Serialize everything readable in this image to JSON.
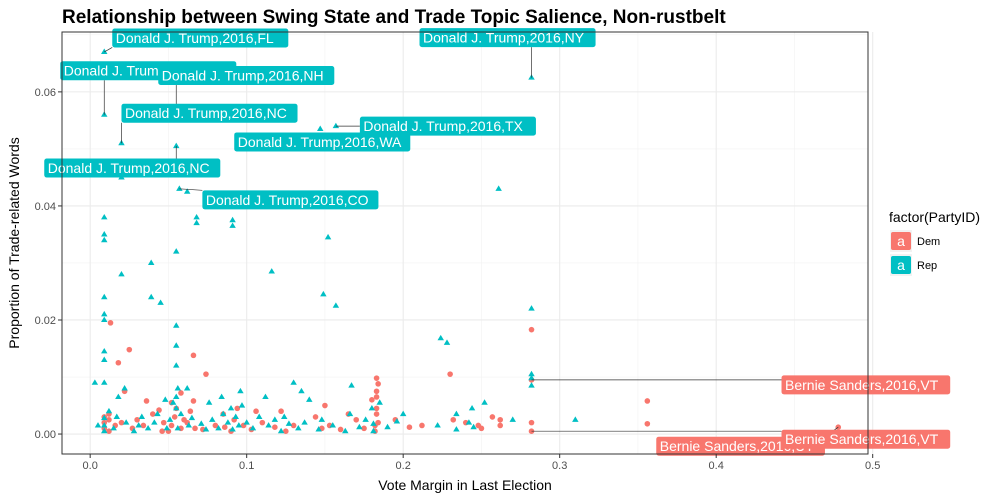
{
  "chart_data": {
    "type": "scatter",
    "title": "Relationship between Swing State and Trade Topic Salience, Non-rustbelt",
    "xlabel": "Vote Margin in Last Election",
    "ylabel": "Proportion of Trade-related Words",
    "xlim": [
      -0.018,
      0.497
    ],
    "ylim": [
      -0.0035,
      0.0705
    ],
    "x_ticks": [
      {
        "value": 0.0,
        "label": "0.0"
      },
      {
        "value": 0.1,
        "label": "0.1"
      },
      {
        "value": 0.2,
        "label": "0.2"
      },
      {
        "value": 0.3,
        "label": "0.3"
      },
      {
        "value": 0.4,
        "label": "0.4"
      },
      {
        "value": 0.5,
        "label": "0.5"
      }
    ],
    "y_ticks": [
      {
        "value": 0.0,
        "label": "0.00"
      },
      {
        "value": 0.02,
        "label": "0.02"
      },
      {
        "value": 0.04,
        "label": "0.04"
      },
      {
        "value": 0.06,
        "label": "0.06"
      }
    ],
    "grid": true,
    "legend": {
      "title": "factor(PartyID)",
      "position": "right",
      "key_glyph": "a",
      "items": [
        {
          "label": "Dem",
          "color": "#F8766D"
        },
        {
          "label": "Rep",
          "color": "#00BFC4"
        }
      ]
    },
    "series": [
      {
        "name": "Dem",
        "color": "#F8766D",
        "marker": "circle",
        "points": [
          [
            0.013,
            0.0195
          ],
          [
            0.018,
            0.0125
          ],
          [
            0.025,
            0.0148
          ],
          [
            0.022,
            0.0075
          ],
          [
            0.036,
            0.0058
          ],
          [
            0.04,
            0.0035
          ],
          [
            0.044,
            0.0042
          ],
          [
            0.058,
            0.0072
          ],
          [
            0.052,
            0.0055
          ],
          [
            0.066,
            0.0138
          ],
          [
            0.066,
            0.0058
          ],
          [
            0.074,
            0.0105
          ],
          [
            0.085,
            0.0035
          ],
          [
            0.094,
            0.0045
          ],
          [
            0.106,
            0.004
          ],
          [
            0.122,
            0.004
          ],
          [
            0.144,
            0.003
          ],
          [
            0.15,
            0.005
          ],
          [
            0.165,
            0.0035
          ],
          [
            0.183,
            0.0098
          ],
          [
            0.18,
            0.006
          ],
          [
            0.195,
            0.0025
          ],
          [
            0.204,
            0.0012
          ],
          [
            0.23,
            0.0105
          ],
          [
            0.24,
            0.002
          ],
          [
            0.248,
            0.0015
          ],
          [
            0.257,
            0.003
          ],
          [
            0.262,
            0.0015
          ],
          [
            0.282,
            0.0183
          ],
          [
            0.282,
            0.0095
          ],
          [
            0.356,
            0.0058
          ],
          [
            0.356,
            0.0018
          ],
          [
            0.478,
            0.0012
          ],
          [
            0.009,
            0.001
          ],
          [
            0.009,
            0.002
          ],
          [
            0.009,
            0.003
          ],
          [
            0.012,
            0.0005
          ],
          [
            0.012,
            0.0025
          ],
          [
            0.012,
            0.0035
          ],
          [
            0.016,
            0.0015
          ],
          [
            0.02,
            0.002
          ],
          [
            0.027,
            0.001
          ],
          [
            0.03,
            0.0025
          ],
          [
            0.034,
            0.0015
          ],
          [
            0.046,
            0.0005
          ],
          [
            0.047,
            0.002
          ],
          [
            0.05,
            0.0005
          ],
          [
            0.052,
            0.0015
          ],
          [
            0.054,
            0.003
          ],
          [
            0.055,
            0.0045
          ],
          [
            0.058,
            0.001
          ],
          [
            0.06,
            0.0025
          ],
          [
            0.062,
            0.002
          ],
          [
            0.064,
            0.004
          ],
          [
            0.067,
            0.001
          ],
          [
            0.072,
            0.0008
          ],
          [
            0.08,
            0.0015
          ],
          [
            0.086,
            0.0012
          ],
          [
            0.09,
            0.0005
          ],
          [
            0.092,
            0.0025
          ],
          [
            0.098,
            0.0015
          ],
          [
            0.103,
            0.0008
          ],
          [
            0.11,
            0.002
          ],
          [
            0.118,
            0.0012
          ],
          [
            0.125,
            0.0005
          ],
          [
            0.13,
            0.0015
          ],
          [
            0.148,
            0.001
          ],
          [
            0.153,
            0.0015
          ],
          [
            0.16,
            0.0008
          ],
          [
            0.17,
            0.0025
          ],
          [
            0.175,
            0.001
          ],
          [
            0.182,
            0.0005
          ],
          [
            0.182,
            0.0015
          ],
          [
            0.183,
            0.0035
          ],
          [
            0.183,
            0.0075
          ],
          [
            0.183,
            0.0045
          ],
          [
            0.183,
            0.0065
          ],
          [
            0.184,
            0.002
          ],
          [
            0.184,
            0.0088
          ],
          [
            0.212,
            0.0015
          ],
          [
            0.232,
            0.0025
          ],
          [
            0.25,
            0.001
          ],
          [
            0.262,
            0.0025
          ],
          [
            0.282,
            0.0005
          ],
          [
            0.282,
            0.002
          ]
        ]
      },
      {
        "name": "Rep",
        "color": "#00BFC4",
        "marker": "triangle",
        "points": [
          [
            0.009,
            0.067
          ],
          [
            0.009,
            0.056
          ],
          [
            0.02,
            0.051
          ],
          [
            0.02,
            0.046
          ],
          [
            0.02,
            0.045
          ],
          [
            0.009,
            0.038
          ],
          [
            0.009,
            0.035
          ],
          [
            0.009,
            0.034
          ],
          [
            0.02,
            0.028
          ],
          [
            0.039,
            0.03
          ],
          [
            0.039,
            0.024
          ],
          [
            0.045,
            0.023
          ],
          [
            0.009,
            0.024
          ],
          [
            0.009,
            0.021
          ],
          [
            0.009,
            0.02
          ],
          [
            0.009,
            0.013
          ],
          [
            0.009,
            0.0145
          ],
          [
            0.009,
            0.009
          ],
          [
            0.055,
            0.0505
          ],
          [
            0.055,
            0.032
          ],
          [
            0.055,
            0.019
          ],
          [
            0.055,
            0.0045
          ],
          [
            0.057,
            0.043
          ],
          [
            0.062,
            0.0425
          ],
          [
            0.068,
            0.038
          ],
          [
            0.068,
            0.037
          ],
          [
            0.091,
            0.0375
          ],
          [
            0.091,
            0.0365
          ],
          [
            0.116,
            0.0285
          ],
          [
            0.147,
            0.0535
          ],
          [
            0.152,
            0.0345
          ],
          [
            0.157,
            0.054
          ],
          [
            0.157,
            0.0225
          ],
          [
            0.149,
            0.0245
          ],
          [
            0.135,
            0.0075
          ],
          [
            0.13,
            0.009
          ],
          [
            0.224,
            0.0168
          ],
          [
            0.228,
            0.016
          ],
          [
            0.261,
            0.043
          ],
          [
            0.282,
            0.0625
          ],
          [
            0.282,
            0.022
          ],
          [
            0.282,
            0.0098
          ],
          [
            0.282,
            0.0085
          ],
          [
            0.282,
            0.0105
          ],
          [
            0.252,
            0.0055
          ],
          [
            0.31,
            0.0025
          ],
          [
            0.244,
            0.0045
          ],
          [
            0.234,
            0.0035
          ],
          [
            0.2,
            0.0035
          ],
          [
            0.18,
            0.0045
          ],
          [
            0.167,
            0.0085
          ],
          [
            0.14,
            0.006
          ],
          [
            0.112,
            0.0065
          ],
          [
            0.096,
            0.0075
          ],
          [
            0.084,
            0.0065
          ],
          [
            0.076,
            0.0055
          ],
          [
            0.062,
            0.008
          ],
          [
            0.048,
            0.006
          ],
          [
            0.022,
            0.008
          ],
          [
            0.003,
            0.009
          ],
          [
            0.018,
            0.0065
          ],
          [
            0.005,
            0.0015
          ],
          [
            0.055,
            0.0155
          ],
          [
            0.055,
            0.012
          ],
          [
            0.009,
            0.0005
          ],
          [
            0.009,
            0.0015
          ],
          [
            0.009,
            0.0028
          ],
          [
            0.012,
            0.004
          ],
          [
            0.015,
            0.001
          ],
          [
            0.017,
            0.003
          ],
          [
            0.023,
            0.002
          ],
          [
            0.028,
            0.0005
          ],
          [
            0.031,
            0.0015
          ],
          [
            0.033,
            0.003
          ],
          [
            0.037,
            0.001
          ],
          [
            0.041,
            0.002
          ],
          [
            0.043,
            0.0035
          ],
          [
            0.049,
            0.001
          ],
          [
            0.051,
            0.0025
          ],
          [
            0.053,
            0.0055
          ],
          [
            0.055,
            0.0065
          ],
          [
            0.056,
            0.008
          ],
          [
            0.056,
            0.001
          ],
          [
            0.058,
            0.0035
          ],
          [
            0.063,
            0.0015
          ],
          [
            0.065,
            0.0028
          ],
          [
            0.071,
            0.0018
          ],
          [
            0.074,
            0.0008
          ],
          [
            0.078,
            0.0025
          ],
          [
            0.082,
            0.001
          ],
          [
            0.085,
            0.0035
          ],
          [
            0.088,
            0.002
          ],
          [
            0.09,
            0.0045
          ],
          [
            0.091,
            0.0008
          ],
          [
            0.093,
            0.003
          ],
          [
            0.095,
            0.0015
          ],
          [
            0.097,
            0.005
          ],
          [
            0.1,
            0.002
          ],
          [
            0.104,
            0.001
          ],
          [
            0.108,
            0.003
          ],
          [
            0.114,
            0.0015
          ],
          [
            0.118,
            0.0025
          ],
          [
            0.122,
            0.0005
          ],
          [
            0.124,
            0.003
          ],
          [
            0.127,
            0.0018
          ],
          [
            0.133,
            0.001
          ],
          [
            0.137,
            0.002
          ],
          [
            0.146,
            0.0008
          ],
          [
            0.148,
            0.0025
          ],
          [
            0.155,
            0.0015
          ],
          [
            0.163,
            0.0005
          ],
          [
            0.166,
            0.0035
          ],
          [
            0.172,
            0.0012
          ],
          [
            0.176,
            0.0025
          ],
          [
            0.181,
            0.0018
          ],
          [
            0.181,
            0.0005
          ],
          [
            0.185,
            0.0055
          ],
          [
            0.19,
            0.0012
          ],
          [
            0.196,
            0.0022
          ],
          [
            0.222,
            0.0015
          ],
          [
            0.234,
            0.0008
          ],
          [
            0.242,
            0.002
          ],
          [
            0.245,
            0.0012
          ],
          [
            0.27,
            0.0025
          ]
        ]
      }
    ],
    "annotations": [
      {
        "text": "Donald J. Trump,2016,FL",
        "party": "Rep",
        "x": 0.009,
        "y": 0.067
      },
      {
        "text": "Donald J. Trump,2016,FL",
        "party": "Rep",
        "x": 0.009,
        "y": 0.056
      },
      {
        "text": "Donald J. Trump,2016,NH",
        "party": "Rep",
        "x": 0.055,
        "y": 0.0555
      },
      {
        "text": "Donald J. Trump,2016,NC",
        "party": "Rep",
        "x": 0.02,
        "y": 0.051
      },
      {
        "text": "Donald J. Trump,2016,NC",
        "party": "Rep",
        "x": 0.055,
        "y": 0.0505
      },
      {
        "text": "Donald J. Trump,2016,CO",
        "party": "Rep",
        "x": 0.057,
        "y": 0.043
      },
      {
        "text": "Donald J. Trump,2016,NY",
        "party": "Rep",
        "x": 0.282,
        "y": 0.0625
      },
      {
        "text": "Donald J. Trump,2016,TX",
        "party": "Rep",
        "x": 0.157,
        "y": 0.054
      },
      {
        "text": "Donald J. Trump,2016,WA",
        "party": "Rep",
        "x": 0.147,
        "y": 0.0535
      },
      {
        "text": "Bernie Sanders,2016,VT",
        "party": "Dem",
        "x": 0.282,
        "y": 0.0095
      },
      {
        "text": "Bernie Sanders,2016,UT",
        "party": "Dem",
        "x": 0.478,
        "y": 0.0012
      },
      {
        "text": "Bernie Sanders,2016,VT",
        "party": "Dem",
        "x": 0.282,
        "y": 0.0005
      }
    ]
  }
}
